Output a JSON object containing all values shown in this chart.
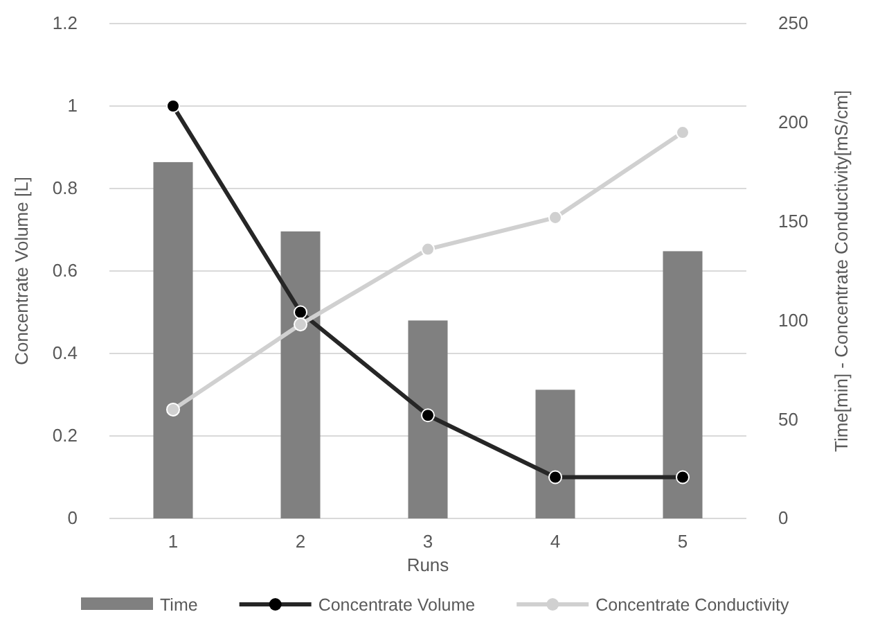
{
  "chart_data": {
    "type": "bar",
    "xlabel": "Runs",
    "ylabel": "Concentrate Volume [L]",
    "y2label": "Time[min] - Concentrate Conductivity[mS/cm]",
    "categories": [
      "1",
      "2",
      "3",
      "4",
      "5"
    ],
    "series": [
      {
        "name": "Time",
        "axis": "y2",
        "color": "#808080",
        "values": [
          180,
          145,
          100,
          65,
          135
        ]
      },
      {
        "name": "Concentrate Volume",
        "type": "line",
        "color": "#262626",
        "values": [
          1,
          0.5,
          0.25,
          0.1,
          0.1
        ]
      },
      {
        "name": "Concentrate Conductivity",
        "type": "line",
        "axis": "y2",
        "color": "#d0d0d0",
        "values": [
          55,
          98,
          136,
          152,
          195
        ]
      }
    ],
    "ylim": [
      0,
      1.2
    ],
    "yticks": [
      0,
      0.2,
      0.4,
      0.6,
      0.8,
      1,
      1.2
    ],
    "y2lim": [
      0,
      250
    ],
    "y2ticks": [
      0,
      50,
      100,
      150,
      200,
      250
    ],
    "grid": "y",
    "legend": "bottom",
    "marker": "circle"
  }
}
